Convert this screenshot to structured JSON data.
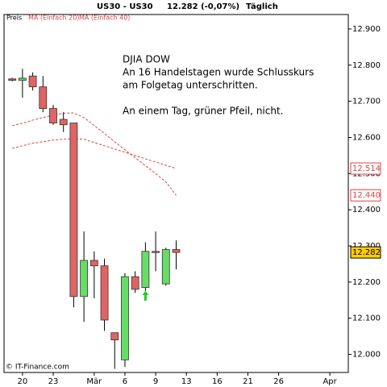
{
  "chart_data": {
    "type": "candlestick",
    "header": [
      "US30 - US30",
      "12.282 (-0,07%)",
      "Täglich"
    ],
    "legend": [
      "Preis",
      "MA (Einfach 20)",
      "MA (Einfach 40)"
    ],
    "annotation": [
      "DJIA  DOW",
      "An 16 Handelstagen wurde Schlusskurs",
      "am Folgetag unterschritten.",
      "An einem Tag, grüner Pfeil, nicht."
    ],
    "footer": "© IT-Finance.com",
    "x": [
      0,
      1,
      2,
      3,
      4,
      5,
      6,
      7,
      8,
      9,
      10,
      11,
      12,
      13,
      14,
      15,
      16
    ],
    "open": [
      12.762,
      12.758,
      12.77,
      12.74,
      12.68,
      12.65,
      12.64,
      12.16,
      12.26,
      12.245,
      12.06,
      11.985,
      12.215,
      12.185,
      12.285,
      12.195,
      12.29
    ],
    "high": [
      12.765,
      12.79,
      12.78,
      12.77,
      12.69,
      12.67,
      12.64,
      12.34,
      12.285,
      12.265,
      12.06,
      12.225,
      12.23,
      12.31,
      12.34,
      12.295,
      12.315
    ],
    "low": [
      12.755,
      12.71,
      12.73,
      12.67,
      12.635,
      12.615,
      12.13,
      12.09,
      12.155,
      12.065,
      11.96,
      11.965,
      12.17,
      12.175,
      12.23,
      12.19,
      12.235
    ],
    "close": [
      12.758,
      12.764,
      12.74,
      12.68,
      12.64,
      12.635,
      12.16,
      12.26,
      12.245,
      12.095,
      12.04,
      12.215,
      12.18,
      12.285,
      12.282,
      12.29,
      12.282
    ],
    "up_color": "#66dd66",
    "down_color": "#e06464",
    "series": [
      {
        "name": "MA (Einfach 20)",
        "color": "#dd4444",
        "values": [
          12.633,
          12.639,
          12.648,
          12.655,
          12.662,
          12.667,
          12.668,
          12.655,
          12.633,
          12.611,
          12.588,
          12.566,
          12.544,
          12.522,
          12.5,
          12.477,
          12.44
        ]
      },
      {
        "name": "MA (Einfach 40)",
        "color": "#dd4444",
        "values": [
          12.57,
          12.577,
          12.584,
          12.588,
          12.593,
          12.595,
          12.597,
          12.595,
          12.586,
          12.577,
          12.568,
          12.559,
          12.55,
          12.541,
          12.532,
          12.523,
          12.514
        ]
      }
    ],
    "price_markers": [
      {
        "value": 12.514,
        "label": "12.514",
        "color": "#dd4444",
        "fill": "#ffffff"
      },
      {
        "value": 12.44,
        "label": "12.440",
        "color": "#dd4444",
        "fill": "#ffffff"
      },
      {
        "value": 12.282,
        "label": "12.282",
        "color": "#000000",
        "fill": "#ffcc00"
      }
    ],
    "signals": [
      {
        "x": 13,
        "y": 12.16,
        "color": "#22cc22"
      }
    ],
    "xlim": [
      -0.8,
      32.8
    ],
    "xticks": [
      {
        "value": 1,
        "label": "20"
      },
      {
        "value": 4,
        "label": "23"
      },
      {
        "value": 8,
        "label": "Mär"
      },
      {
        "value": 11,
        "label": "6"
      },
      {
        "value": 14,
        "label": "9"
      },
      {
        "value": 17,
        "label": "13"
      },
      {
        "value": 20,
        "label": "16"
      },
      {
        "value": 23,
        "label": "21"
      },
      {
        "value": 26,
        "label": "26"
      },
      {
        "value": 31,
        "label": "Apr"
      }
    ],
    "ylim": [
      11.95,
      12.94
    ],
    "yticks": [
      {
        "value": 12.0,
        "label": "12.000"
      },
      {
        "value": 12.1,
        "label": "12.100"
      },
      {
        "value": 12.2,
        "label": "12.200"
      },
      {
        "value": 12.3,
        "label": "12.300"
      },
      {
        "value": 12.4,
        "label": "12.400"
      },
      {
        "value": 12.5,
        "label": "12.500"
      },
      {
        "value": 12.6,
        "label": "12.600"
      },
      {
        "value": 12.7,
        "label": "12.700"
      },
      {
        "value": 12.8,
        "label": "12.800"
      },
      {
        "value": 12.9,
        "label": "12.900"
      }
    ]
  }
}
